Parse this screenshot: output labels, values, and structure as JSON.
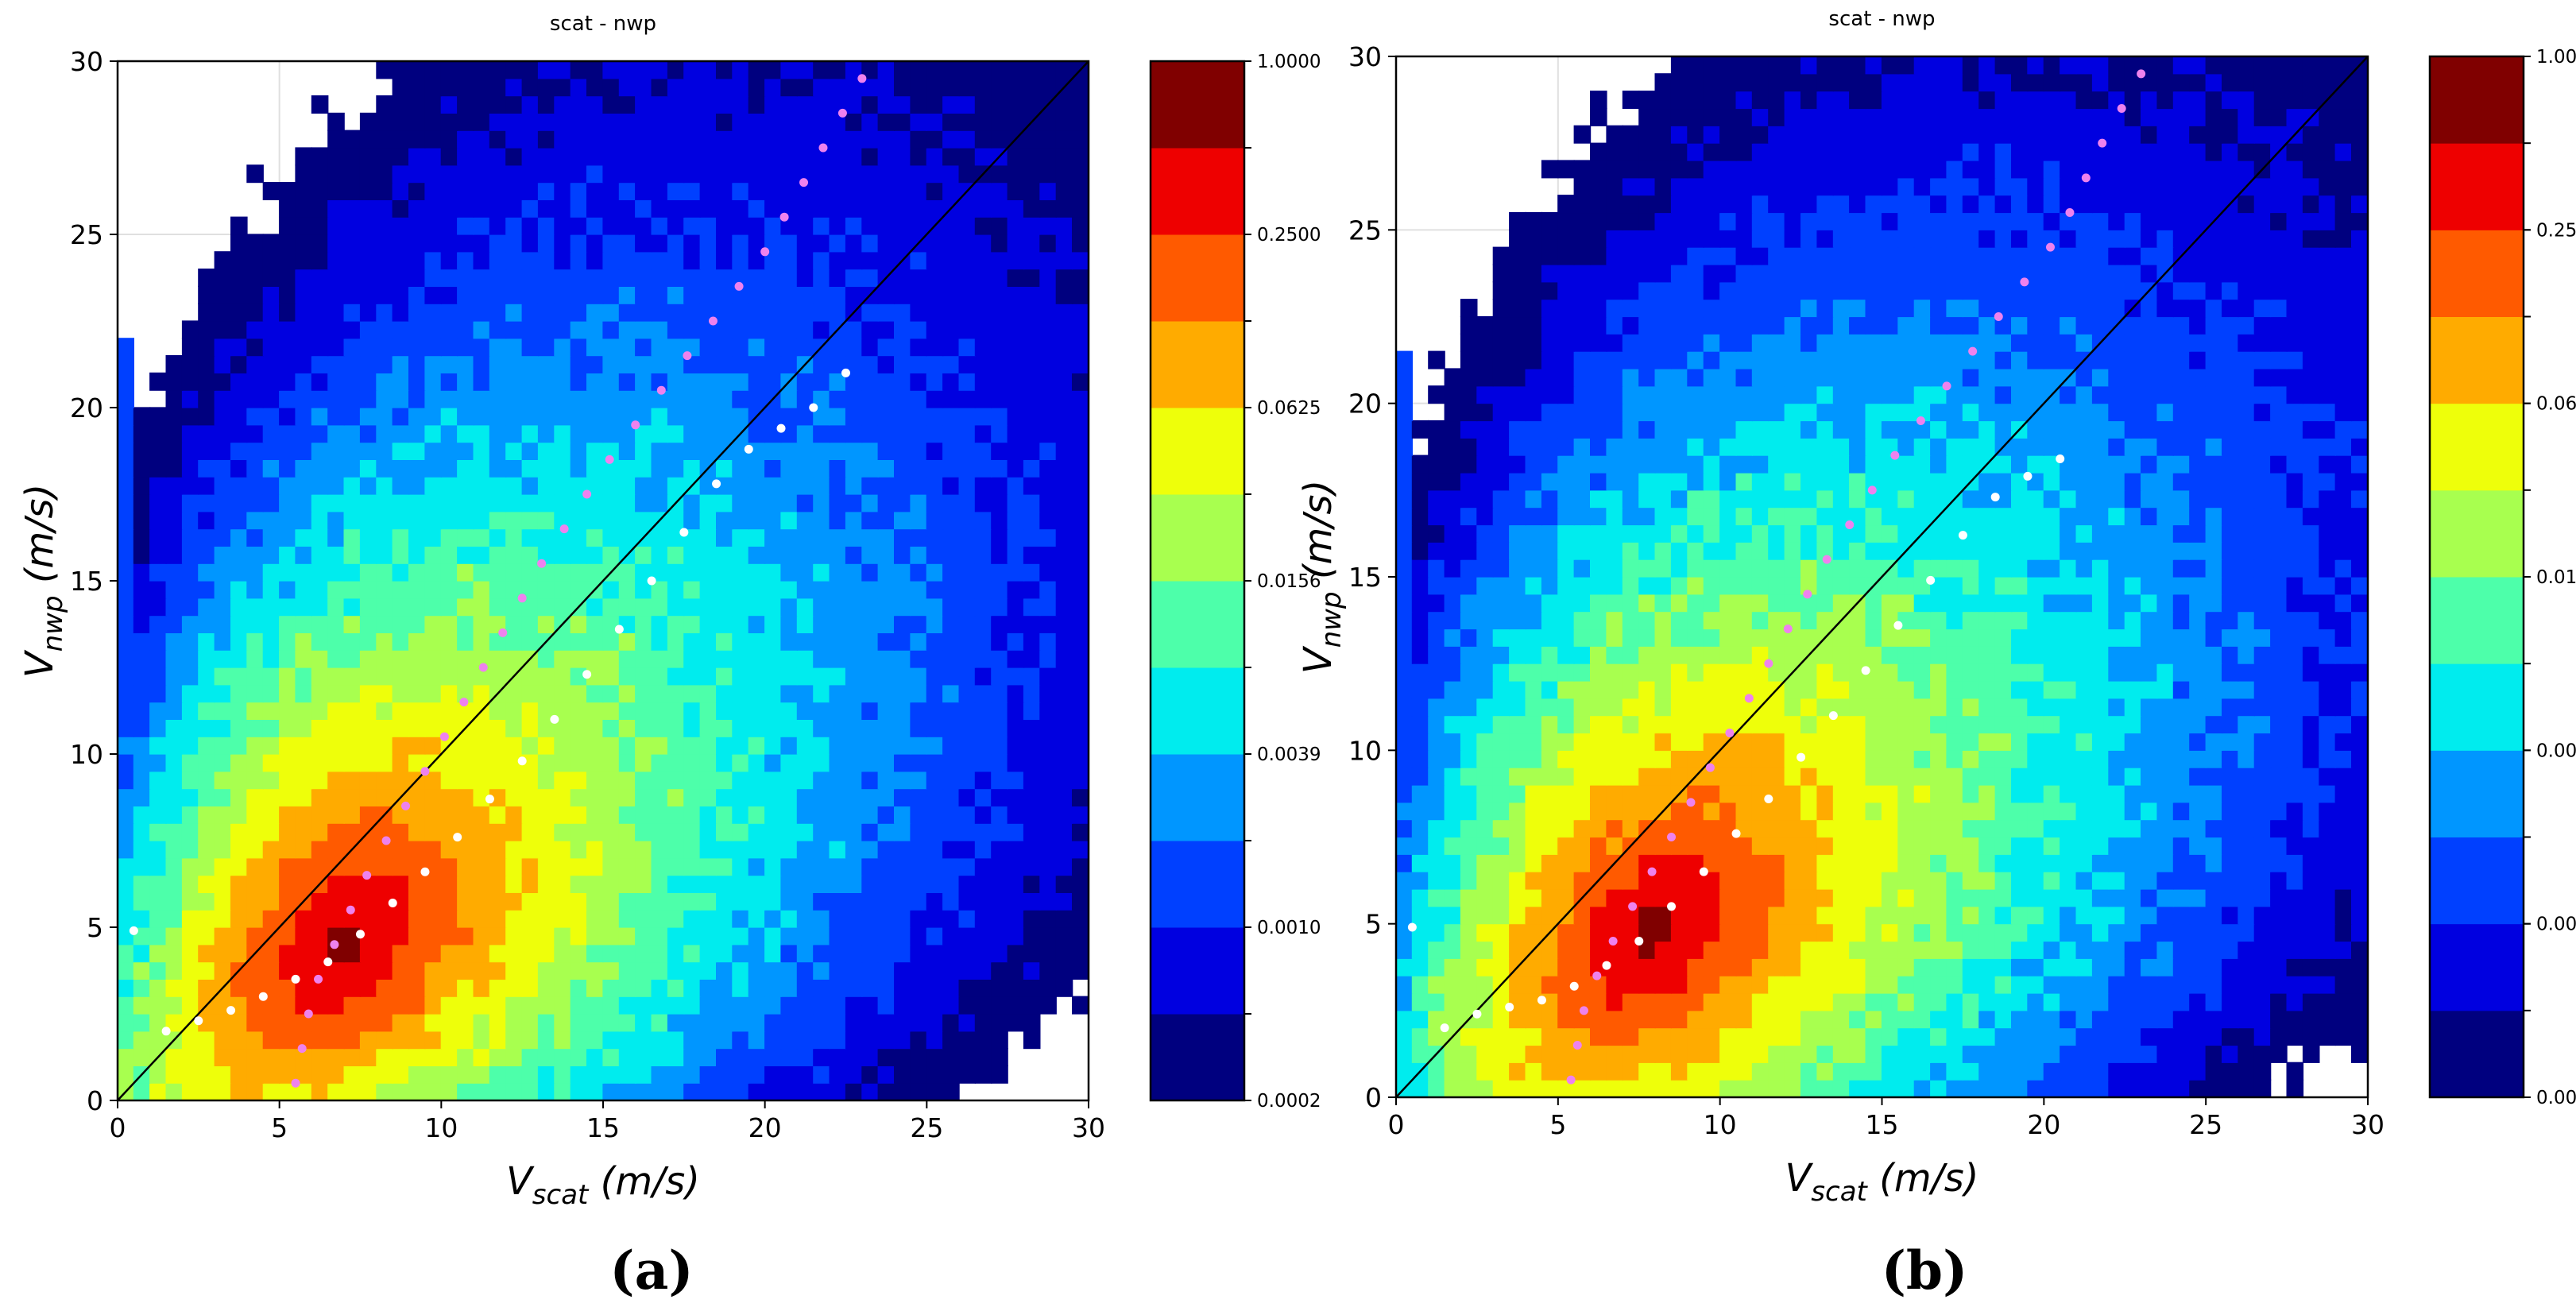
{
  "figure": {
    "panels": [
      {
        "tag": "(a)"
      },
      {
        "tag": "(b)"
      }
    ]
  },
  "colors": {
    "levels": [
      "#00007f",
      "#0000e0",
      "#0040ff",
      "#0096ff",
      "#00ecee",
      "#4dffaa",
      "#a8ff4f",
      "#eeff0a",
      "#ffab00",
      "#ff5a00",
      "#ee0000",
      "#800000"
    ],
    "diagonal": "#000000",
    "mean_scat_dots": "#ffffff",
    "mean_nwp_dots": "#ee82ee",
    "grid": "#e0e0e0"
  },
  "chart_data": [
    {
      "type": "heatmap",
      "title": "scat - nwp",
      "xlabel": {
        "main": "V",
        "sub": "scat",
        "unit": " (m/s)"
      },
      "ylabel": {
        "main": "V",
        "sub": "nwp",
        "unit": " (m/s)"
      },
      "xlim": [
        0,
        30
      ],
      "ylim": [
        0,
        30
      ],
      "xticks": [
        "0",
        "5",
        "10",
        "15",
        "20",
        "25",
        "30"
      ],
      "yticks": [
        "0",
        "5",
        "10",
        "15",
        "20",
        "25",
        "30"
      ],
      "grid": true,
      "colorbar": {
        "levels": 12,
        "scale": "log",
        "tick_labels": [
          "1.0000",
          "0.2500",
          "0.0625",
          "0.0156",
          "0.0039",
          "0.0010",
          "0.0002"
        ]
      },
      "density_peak": {
        "x": 7,
        "y": 4.5
      },
      "diagonal": [
        [
          0,
          0
        ],
        [
          30,
          30
        ]
      ],
      "series": [
        {
          "color": "white",
          "points": [
            [
              0.5,
              4.9
            ],
            [
              1.5,
              2.0
            ],
            [
              2.5,
              2.3
            ],
            [
              3.5,
              2.6
            ],
            [
              4.5,
              3.0
            ],
            [
              5.5,
              3.5
            ],
            [
              6.5,
              4.0
            ],
            [
              7.5,
              4.8
            ],
            [
              8.5,
              5.7
            ],
            [
              9.5,
              6.6
            ],
            [
              10.5,
              7.6
            ],
            [
              11.5,
              8.7
            ],
            [
              12.5,
              9.8
            ],
            [
              13.5,
              11.0
            ],
            [
              14.5,
              12.3
            ],
            [
              15.5,
              13.6
            ],
            [
              16.5,
              15.0
            ],
            [
              17.5,
              16.4
            ],
            [
              18.5,
              17.8
            ],
            [
              19.5,
              18.8
            ],
            [
              20.5,
              19.4
            ],
            [
              21.5,
              20.0
            ],
            [
              22.5,
              21.0
            ]
          ]
        },
        {
          "color": "violet",
          "points": [
            [
              5.5,
              0.5
            ],
            [
              5.7,
              1.5
            ],
            [
              5.9,
              2.5
            ],
            [
              6.2,
              3.5
            ],
            [
              6.7,
              4.5
            ],
            [
              7.2,
              5.5
            ],
            [
              7.7,
              6.5
            ],
            [
              8.3,
              7.5
            ],
            [
              8.9,
              8.5
            ],
            [
              9.5,
              9.5
            ],
            [
              10.1,
              10.5
            ],
            [
              10.7,
              11.5
            ],
            [
              11.3,
              12.5
            ],
            [
              11.9,
              13.5
            ],
            [
              12.5,
              14.5
            ],
            [
              13.1,
              15.5
            ],
            [
              13.8,
              16.5
            ],
            [
              14.5,
              17.5
            ],
            [
              15.2,
              18.5
            ],
            [
              16.0,
              19.5
            ],
            [
              16.8,
              20.5
            ],
            [
              17.6,
              21.5
            ],
            [
              18.4,
              22.5
            ],
            [
              19.2,
              23.5
            ],
            [
              20.0,
              24.5
            ],
            [
              20.6,
              25.5
            ],
            [
              21.2,
              26.5
            ],
            [
              21.8,
              27.5
            ],
            [
              22.4,
              28.5
            ],
            [
              23.0,
              29.5
            ]
          ]
        }
      ]
    },
    {
      "type": "heatmap",
      "title": "scat - nwp",
      "xlabel": {
        "main": "V",
        "sub": "scat",
        "unit": " (m/s)"
      },
      "ylabel": {
        "main": "V",
        "sub": "nwp",
        "unit": " (m/s)"
      },
      "xlim": [
        0,
        30
      ],
      "ylim": [
        0,
        30
      ],
      "xticks": [
        "0",
        "5",
        "10",
        "15",
        "20",
        "25",
        "30"
      ],
      "yticks": [
        "0",
        "5",
        "10",
        "15",
        "20",
        "25",
        "30"
      ],
      "grid": true,
      "colorbar": {
        "levels": 12,
        "scale": "log",
        "tick_labels": [
          "1.0000",
          "0.2500",
          "0.0625",
          "0.0156",
          "0.0039",
          "0.0010",
          "0.0002"
        ]
      },
      "density_peak": {
        "x": 8,
        "y": 4.8
      },
      "diagonal": [
        [
          0,
          0
        ],
        [
          30,
          30
        ]
      ],
      "series": [
        {
          "color": "white",
          "points": [
            [
              0.5,
              4.9
            ],
            [
              1.5,
              2.0
            ],
            [
              2.5,
              2.4
            ],
            [
              3.5,
              2.6
            ],
            [
              4.5,
              2.8
            ],
            [
              5.5,
              3.2
            ],
            [
              6.5,
              3.8
            ],
            [
              7.5,
              4.5
            ],
            [
              8.5,
              5.5
            ],
            [
              9.5,
              6.5
            ],
            [
              10.5,
              7.6
            ],
            [
              11.5,
              8.6
            ],
            [
              12.5,
              9.8
            ],
            [
              13.5,
              11.0
            ],
            [
              14.5,
              12.3
            ],
            [
              15.5,
              13.6
            ],
            [
              16.5,
              14.9
            ],
            [
              17.5,
              16.2
            ],
            [
              18.5,
              17.3
            ],
            [
              19.5,
              17.9
            ],
            [
              20.5,
              18.4
            ]
          ]
        },
        {
          "color": "violet",
          "points": [
            [
              5.4,
              0.5
            ],
            [
              5.6,
              1.5
            ],
            [
              5.8,
              2.5
            ],
            [
              6.2,
              3.5
            ],
            [
              6.7,
              4.5
            ],
            [
              7.3,
              5.5
            ],
            [
              7.9,
              6.5
            ],
            [
              8.5,
              7.5
            ],
            [
              9.1,
              8.5
            ],
            [
              9.7,
              9.5
            ],
            [
              10.3,
              10.5
            ],
            [
              10.9,
              11.5
            ],
            [
              11.5,
              12.5
            ],
            [
              12.1,
              13.5
            ],
            [
              12.7,
              14.5
            ],
            [
              13.3,
              15.5
            ],
            [
              14.0,
              16.5
            ],
            [
              14.7,
              17.5
            ],
            [
              15.4,
              18.5
            ],
            [
              16.2,
              19.5
            ],
            [
              17.0,
              20.5
            ],
            [
              17.8,
              21.5
            ],
            [
              18.6,
              22.5
            ],
            [
              19.4,
              23.5
            ],
            [
              20.2,
              24.5
            ],
            [
              20.8,
              25.5
            ],
            [
              21.3,
              26.5
            ],
            [
              21.8,
              27.5
            ],
            [
              22.4,
              28.5
            ],
            [
              23.0,
              29.5
            ]
          ]
        }
      ]
    }
  ]
}
